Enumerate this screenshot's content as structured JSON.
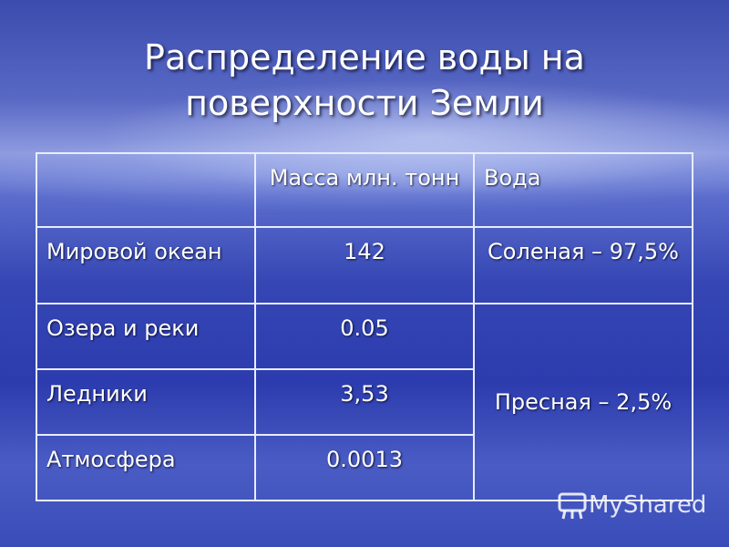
{
  "title": [
    "Распределение воды на",
    "поверхности Земли"
  ],
  "table": {
    "header": [
      "Масса млн. тонн",
      "Вода"
    ],
    "rows": [
      [
        "Мировой океан",
        "142",
        "Соленая – 97,5%"
      ],
      [
        "Озера и реки",
        "0.05",
        "Пресная – 2,5%"
      ],
      [
        "Ледники",
        "3,53"
      ],
      [
        "Атмосфера",
        "0.0013"
      ]
    ]
  },
  "watermark": "MyShared"
}
